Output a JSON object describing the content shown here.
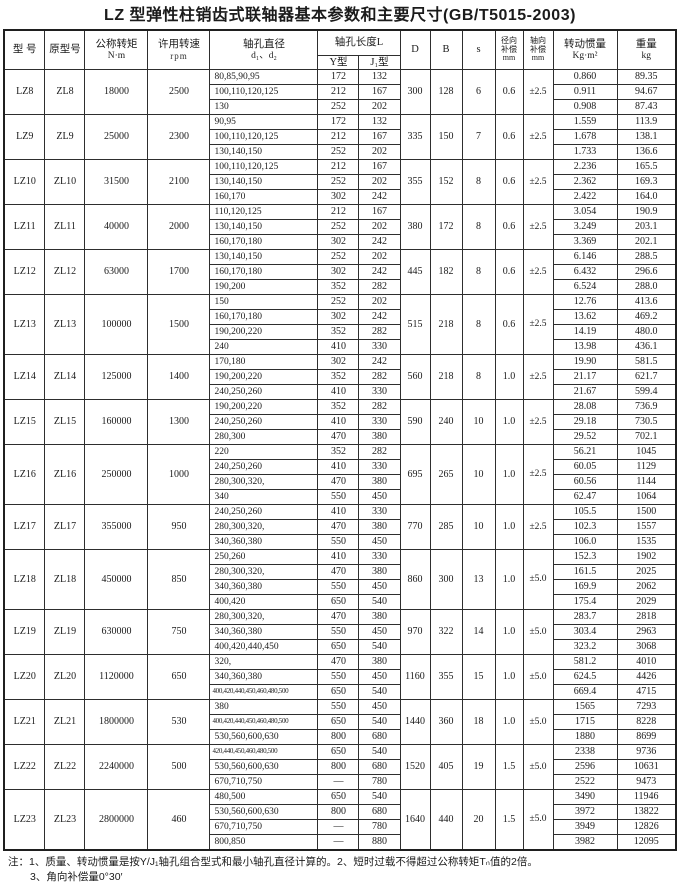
{
  "title": "LZ 型弹性柱销齿式联轴器基本参数和主要尺寸(GB/T5015-2003)",
  "header": {
    "model": "型 号",
    "proto": "原型号",
    "torque1": "公称转矩",
    "torque2": "N·m",
    "speed1": "许用转速",
    "speed2": "rpm",
    "bore1": "轴孔直径",
    "bore2": "d₁、d₂",
    "length": "轴孔长度L",
    "y_type": "Y型",
    "j_type": "J₁型",
    "D": "D",
    "B": "B",
    "s": "s",
    "radial1": "径向",
    "radial2": "补偿",
    "radial3": "mm",
    "axial1": "轴向",
    "axial2": "补偿",
    "axial3": "mm",
    "inertia1": "转动惯量",
    "inertia2": "Kg·m²",
    "weight1": "重量",
    "weight2": "kg"
  },
  "table": {
    "groups": [
      {
        "model": "LZ8",
        "proto": "ZL8",
        "torque": "18000",
        "speed": "2500",
        "D": "300",
        "B": "128",
        "s": "6",
        "radial": "0.6",
        "axial": "±2.5",
        "rows": [
          [
            "80,85,90,95",
            "172",
            "132",
            "0.860",
            "89.35"
          ],
          [
            "100,110,120,125",
            "212",
            "167",
            "0.911",
            "94.67"
          ],
          [
            "130",
            "252",
            "202",
            "0.908",
            "87.43"
          ]
        ]
      },
      {
        "model": "LZ9",
        "proto": "ZL9",
        "torque": "25000",
        "speed": "2300",
        "D": "335",
        "B": "150",
        "s": "7",
        "radial": "0.6",
        "axial": "±2.5",
        "rows": [
          [
            "90,95",
            "172",
            "132",
            "1.559",
            "113.9"
          ],
          [
            "100,110,120,125",
            "212",
            "167",
            "1.678",
            "138.1"
          ],
          [
            "130,140,150",
            "252",
            "202",
            "1.733",
            "136.6"
          ]
        ]
      },
      {
        "model": "LZ10",
        "proto": "ZL10",
        "torque": "31500",
        "speed": "2100",
        "D": "355",
        "B": "152",
        "s": "8",
        "radial": "0.6",
        "axial": "±2.5",
        "rows": [
          [
            "100,110,120,125",
            "212",
            "167",
            "2.236",
            "165.5"
          ],
          [
            "130,140,150",
            "252",
            "202",
            "2.362",
            "169.3"
          ],
          [
            "160,170",
            "302",
            "242",
            "2.422",
            "164.0"
          ]
        ]
      },
      {
        "model": "LZ11",
        "proto": "ZL11",
        "torque": "40000",
        "speed": "2000",
        "D": "380",
        "B": "172",
        "s": "8",
        "radial": "0.6",
        "axial": "±2.5",
        "rows": [
          [
            "110,120,125",
            "212",
            "167",
            "3.054",
            "190.9"
          ],
          [
            "130,140,150",
            "252",
            "202",
            "3.249",
            "203.1"
          ],
          [
            "160,170,180",
            "302",
            "242",
            "3.369",
            "202.1"
          ]
        ]
      },
      {
        "model": "LZ12",
        "proto": "ZL12",
        "torque": "63000",
        "speed": "1700",
        "D": "445",
        "B": "182",
        "s": "8",
        "radial": "0.6",
        "axial": "±2.5",
        "rows": [
          [
            "130,140,150",
            "252",
            "202",
            "6.146",
            "288.5"
          ],
          [
            "160,170,180",
            "302",
            "242",
            "6.432",
            "296.6"
          ],
          [
            "190,200",
            "352",
            "282",
            "6.524",
            "288.0"
          ]
        ]
      },
      {
        "model": "LZ13",
        "proto": "ZL13",
        "torque": "100000",
        "speed": "1500",
        "D": "515",
        "B": "218",
        "s": "8",
        "radial": "0.6",
        "axial": "±2.5",
        "rows": [
          [
            "150",
            "252",
            "202",
            "12.76",
            "413.6"
          ],
          [
            "160,170,180",
            "302",
            "242",
            "13.62",
            "469.2"
          ],
          [
            "190,200,220",
            "352",
            "282",
            "14.19",
            "480.0"
          ],
          [
            "240",
            "410",
            "330",
            "13.98",
            "436.1"
          ]
        ]
      },
      {
        "model": "LZ14",
        "proto": "ZL14",
        "torque": "125000",
        "speed": "1400",
        "D": "560",
        "B": "218",
        "s": "8",
        "radial": "1.0",
        "axial": "±2.5",
        "rows": [
          [
            "170,180",
            "302",
            "242",
            "19.90",
            "581.5"
          ],
          [
            "190,200,220",
            "352",
            "282",
            "21.17",
            "621.7"
          ],
          [
            "240,250,260",
            "410",
            "330",
            "21.67",
            "599.4"
          ]
        ]
      },
      {
        "model": "LZ15",
        "proto": "ZL15",
        "torque": "160000",
        "speed": "1300",
        "D": "590",
        "B": "240",
        "s": "10",
        "radial": "1.0",
        "axial": "±2.5",
        "rows": [
          [
            "190,200,220",
            "352",
            "282",
            "28.08",
            "736.9"
          ],
          [
            "240,250,260",
            "410",
            "330",
            "29.18",
            "730.5"
          ],
          [
            "280,300",
            "470",
            "380",
            "29.52",
            "702.1"
          ]
        ]
      },
      {
        "model": "LZ16",
        "proto": "ZL16",
        "torque": "250000",
        "speed": "1000",
        "D": "695",
        "B": "265",
        "s": "10",
        "radial": "1.0",
        "axial": "±2.5",
        "rows": [
          [
            "220",
            "352",
            "282",
            "56.21",
            "1045"
          ],
          [
            "240,250,260",
            "410",
            "330",
            "60.05",
            "1129"
          ],
          [
            "280,300,320,",
            "470",
            "380",
            "60.56",
            "1144"
          ],
          [
            "340",
            "550",
            "450",
            "62.47",
            "1064"
          ]
        ]
      },
      {
        "model": "LZ17",
        "proto": "ZL17",
        "torque": "355000",
        "speed": "950",
        "D": "770",
        "B": "285",
        "s": "10",
        "radial": "1.0",
        "axial": "±2.5",
        "rows": [
          [
            "240,250,260",
            "410",
            "330",
            "105.5",
            "1500"
          ],
          [
            "280,300,320,",
            "470",
            "380",
            "102.3",
            "1557"
          ],
          [
            "340,360,380",
            "550",
            "450",
            "106.0",
            "1535"
          ]
        ]
      },
      {
        "model": "LZ18",
        "proto": "ZL18",
        "torque": "450000",
        "speed": "850",
        "D": "860",
        "B": "300",
        "s": "13",
        "radial": "1.0",
        "axial": "±5.0",
        "rows": [
          [
            "250,260",
            "410",
            "330",
            "152.3",
            "1902"
          ],
          [
            "280,300,320,",
            "470",
            "380",
            "161.5",
            "2025"
          ],
          [
            "340,360,380",
            "550",
            "450",
            "169.9",
            "2062"
          ],
          [
            "400,420",
            "650",
            "540",
            "175.4",
            "2029"
          ]
        ]
      },
      {
        "model": "LZ19",
        "proto": "ZL19",
        "torque": "630000",
        "speed": "750",
        "D": "970",
        "B": "322",
        "s": "14",
        "radial": "1.0",
        "axial": "±5.0",
        "rows": [
          [
            "280,300,320,",
            "470",
            "380",
            "283.7",
            "2818"
          ],
          [
            "340,360,380",
            "550",
            "450",
            "303.4",
            "2963"
          ],
          [
            "400,420,440,450",
            "650",
            "540",
            "323.2",
            "3068"
          ]
        ]
      },
      {
        "model": "LZ20",
        "proto": "ZL20",
        "torque": "1120000",
        "speed": "650",
        "D": "1160",
        "B": "355",
        "s": "15",
        "radial": "1.0",
        "axial": "±5.0",
        "rows": [
          [
            "320,",
            "470",
            "380",
            "581.2",
            "4010"
          ],
          [
            "340,360,380",
            "550",
            "450",
            "624.5",
            "4426"
          ],
          [
            "400,420,440,450,460,480,500",
            "650",
            "540",
            "669.4",
            "4715"
          ]
        ]
      },
      {
        "model": "LZ21",
        "proto": "ZL21",
        "torque": "1800000",
        "speed": "530",
        "D": "1440",
        "B": "360",
        "s": "18",
        "radial": "1.0",
        "axial": "±5.0",
        "rows": [
          [
            "380",
            "550",
            "450",
            "1565",
            "7293"
          ],
          [
            "400,420,440,450,460,480,500",
            "650",
            "540",
            "1715",
            "8228"
          ],
          [
            "530,560,600,630",
            "800",
            "680",
            "1880",
            "8699"
          ]
        ]
      },
      {
        "model": "LZ22",
        "proto": "ZL22",
        "torque": "2240000",
        "speed": "500",
        "D": "1520",
        "B": "405",
        "s": "19",
        "radial": "1.5",
        "axial": "±5.0",
        "rows": [
          [
            "420,440,450,460,480,500",
            "650",
            "540",
            "2338",
            "9736"
          ],
          [
            "530,560,600,630",
            "800",
            "680",
            "2596",
            "10631"
          ],
          [
            "670,710,750",
            "—",
            "780",
            "2522",
            "9473"
          ]
        ]
      },
      {
        "model": "LZ23",
        "proto": "ZL23",
        "torque": "2800000",
        "speed": "460",
        "D": "1640",
        "B": "440",
        "s": "20",
        "radial": "1.5",
        "axial": "±5.0",
        "rows": [
          [
            "480,500",
            "650",
            "540",
            "3490",
            "11946"
          ],
          [
            "530,560,600,630",
            "800",
            "680",
            "3972",
            "13822"
          ],
          [
            "670,710,750",
            "—",
            "780",
            "3949",
            "12826"
          ],
          [
            "800,850",
            "—",
            "880",
            "3982",
            "12095"
          ]
        ]
      }
    ]
  },
  "notes": [
    "注：1、质量、转动惯量是按Y/J₁轴孔组合型式和最小轴孔直径计算的。2、短时过载不得超过公称转矩Tₙ值的2倍。",
    "3、角向补偿量0°30′"
  ]
}
